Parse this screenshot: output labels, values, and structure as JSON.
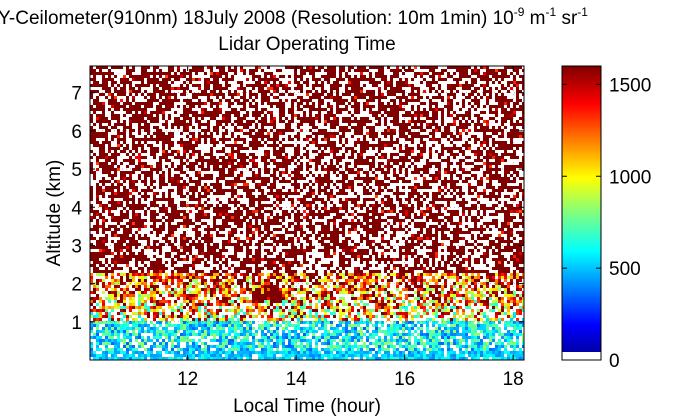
{
  "chart_data": {
    "type": "heatmap",
    "title_parts": {
      "prefix": "Y-Ceilometer(910nm) 18July 2008 (Resolution: 10m 1min) 10",
      "exp1": "-9",
      "mid": " m",
      "exp2": "-1",
      "mid2": " sr",
      "exp3": "-1"
    },
    "subtitle": "Lidar Operating Time",
    "xlabel": "Local Time (hour)",
    "ylabel": "Altitude (km)",
    "xlim": [
      10.2,
      18.2
    ],
    "ylim": [
      0,
      7.7
    ],
    "x_ticks": [
      12,
      14,
      16,
      18
    ],
    "y_ticks": [
      1,
      2,
      3,
      4,
      5,
      6,
      7
    ],
    "colorbar": {
      "min": 0,
      "max": 1600,
      "ticks": [
        0,
        500,
        1000,
        1500
      ],
      "colormap": "jet"
    },
    "feature_note_values": {
      "saturated_color": "#800000",
      "noise_color": "#ffffff",
      "boundary_layer_top_km": 1.0
    },
    "grid": true
  }
}
